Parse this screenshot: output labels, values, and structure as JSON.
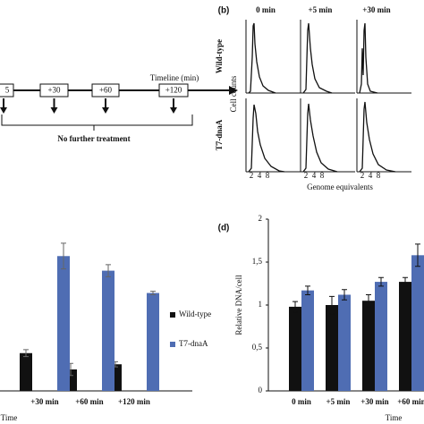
{
  "timeline": {
    "label": "Timeline (min)",
    "steps": [
      "5",
      "+30",
      "+60",
      "+120"
    ],
    "note": "No further treatment"
  },
  "histograms": {
    "label": "(b)",
    "columns": [
      "0 min",
      "+5 min",
      "+30 min"
    ],
    "rows": [
      "Wild-type",
      "T7-dnaA"
    ],
    "y_label": "Cell counts",
    "x_ticks": [
      2,
      4,
      8
    ],
    "x_label": "Genome equivalents"
  },
  "chart_data": [
    {
      "type": "bar",
      "categories": [
        "+30 min",
        "+60 min",
        "+120 min"
      ],
      "series": [
        {
          "name": "Wild-type",
          "color": "#111111",
          "values": [
            0.44,
            0.25,
            0.31
          ],
          "errors": [
            0.04,
            0.07,
            0.03
          ]
        },
        {
          "name": "T7-dnaA",
          "color": "#4f6db3",
          "values": [
            1.57,
            1.4,
            1.14
          ],
          "errors": [
            0.15,
            0.07,
            0.02
          ]
        }
      ],
      "ylim": [
        0,
        2
      ],
      "x_label": "Time"
    },
    {
      "type": "bar",
      "label": "(d)",
      "categories": [
        "0 min",
        "+5 min",
        "+30 min",
        "+60 min"
      ],
      "series": [
        {
          "color": "#111111",
          "values": [
            0.98,
            1.0,
            1.05,
            1.27
          ],
          "errors": [
            0.06,
            0.1,
            0.07,
            0.05
          ]
        },
        {
          "color": "#4f6db3",
          "values": [
            1.17,
            1.12,
            1.27,
            1.58
          ],
          "errors": [
            0.05,
            0.06,
            0.05,
            0.13
          ]
        }
      ],
      "ylim": [
        0,
        2
      ],
      "yticks": [
        0,
        {
          "value": 0.5,
          "label": "0,5"
        },
        1,
        {
          "value": 1.5,
          "label": "1,5"
        },
        2
      ],
      "y_label": "Relative DNA/cell",
      "x_label": "Time"
    }
  ]
}
